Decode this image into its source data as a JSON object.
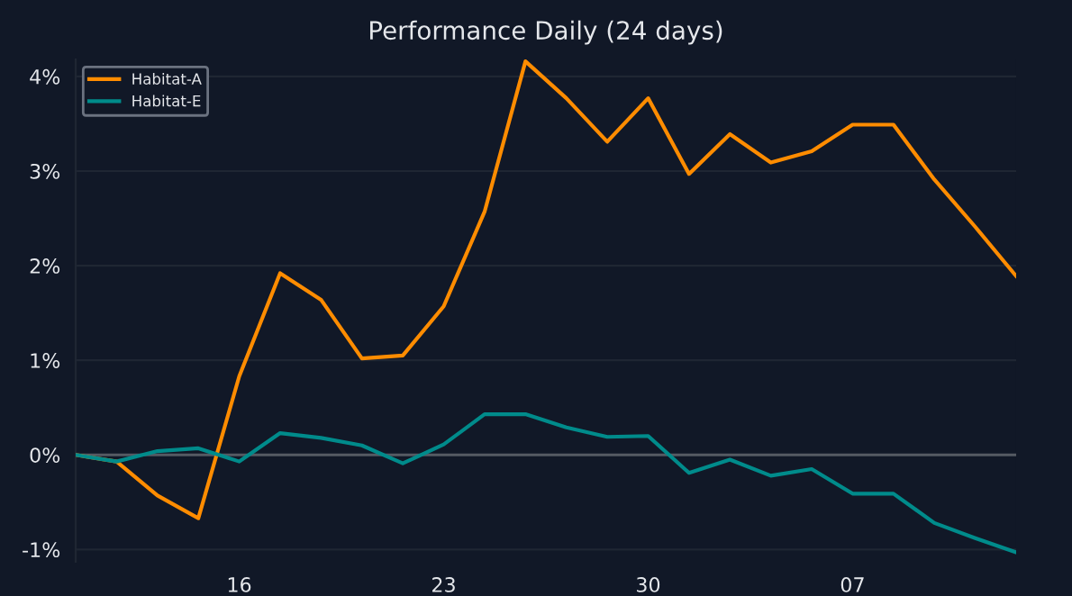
{
  "chart_data": {
    "type": "line",
    "title": "Performance Daily (24 days)",
    "categories": [
      null,
      null,
      null,
      null,
      "16",
      null,
      null,
      null,
      null,
      "23",
      null,
      null,
      null,
      null,
      "30",
      null,
      null,
      null,
      null,
      "07",
      null,
      null,
      null,
      null
    ],
    "series": [
      {
        "name": "Habitat-A",
        "color": "#ff8c00",
        "values": [
          0,
          -0.07,
          -0.43,
          -0.67,
          0.83,
          1.92,
          1.64,
          1.02,
          1.05,
          1.57,
          2.57,
          4.16,
          3.77,
          3.31,
          3.77,
          2.97,
          3.39,
          3.09,
          3.21,
          3.49,
          3.49,
          2.91,
          2.41,
          1.89
        ]
      },
      {
        "name": "Habitat-E",
        "color": "#008b8b",
        "values": [
          0,
          -0.07,
          0.04,
          0.07,
          -0.07,
          0.23,
          0.18,
          0.1,
          -0.09,
          0.11,
          0.43,
          0.43,
          0.29,
          0.19,
          0.2,
          -0.19,
          -0.05,
          -0.22,
          -0.15,
          -0.41,
          -0.41,
          -0.72,
          -0.88,
          -1.03
        ]
      }
    ],
    "ylim": [
      -1.13,
      4.18
    ],
    "yticks": [
      {
        "value": -1,
        "label": "-1%"
      },
      {
        "value": 0,
        "label": "0%"
      },
      {
        "value": 1,
        "label": "1%"
      },
      {
        "value": 2,
        "label": "2%"
      },
      {
        "value": 3,
        "label": "3%"
      },
      {
        "value": 4,
        "label": "4%"
      }
    ],
    "ref_lines": [
      {
        "axis": "y",
        "value": 0,
        "color": "#555a63"
      }
    ],
    "grid": "y",
    "legend": "top left",
    "marker": "none",
    "line_style": "solid"
  }
}
